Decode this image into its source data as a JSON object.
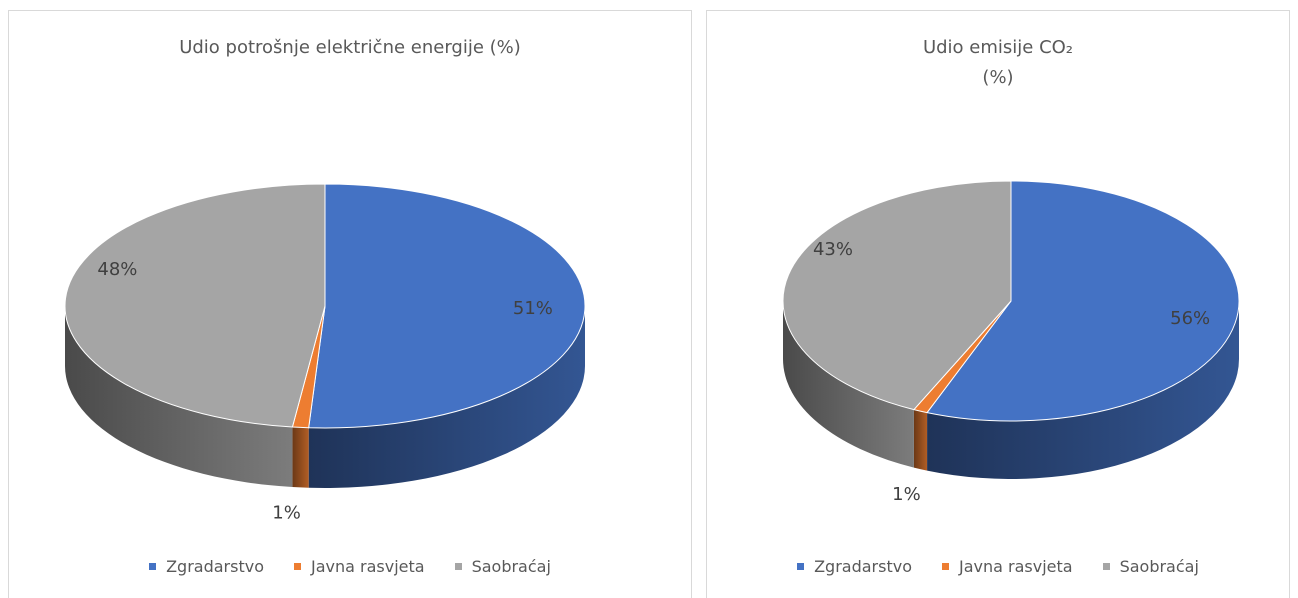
{
  "chart_data": [
    {
      "type": "pie3d",
      "title": "Udio potrošnje električne energije (%)",
      "categories": [
        "Zgradarstvo",
        "Javna rasvjeta",
        "Saobraćaj"
      ],
      "values": [
        51,
        1,
        48
      ],
      "value_labels": [
        "51%",
        "1%",
        "48%"
      ],
      "colors": [
        "#4472c4",
        "#ed7d31",
        "#a5a5a5"
      ],
      "legend": "bottom"
    },
    {
      "type": "pie3d",
      "title": "Udio emisije CO₂ (%)",
      "categories": [
        "Zgradarstvo",
        "Javna rasvjeta",
        "Saobraćaj"
      ],
      "values": [
        56,
        1,
        43
      ],
      "value_labels": [
        "56%",
        "1%",
        "43%"
      ],
      "colors": [
        "#4472c4",
        "#ed7d31",
        "#a5a5a5"
      ],
      "legend": "bottom"
    }
  ]
}
